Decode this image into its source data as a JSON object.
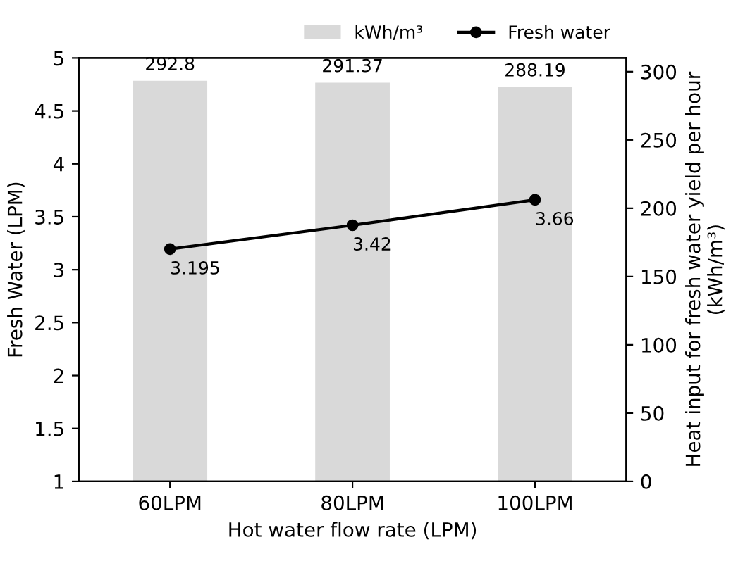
{
  "chart_data": {
    "type": "bar",
    "xlabel": "Hot water flow rate (LPM)",
    "ylabel": "Fresh Water (LPM)",
    "y2label": "Heat input for fresh water yield per hour\n(kWh/m³)",
    "categories": [
      "60LPM",
      "80LPM",
      "100LPM"
    ],
    "series": [
      {
        "name": "kWh/m³",
        "axis": "y2",
        "color": "#d9d9d9",
        "values": [
          292.8,
          291.37,
          288.19
        ]
      },
      {
        "name": "Fresh water",
        "type": "line",
        "axis": "y",
        "color": "#000000",
        "values": [
          3.195,
          3.42,
          3.66
        ],
        "marker": "circle",
        "line_style": "solid"
      }
    ],
    "ylim": [
      1,
      5
    ],
    "yticks": [
      1,
      1.5,
      2,
      2.5,
      3,
      3.5,
      4,
      4.5,
      5
    ],
    "y2lim": [
      0,
      310
    ],
    "y2ticks": [
      0,
      50,
      100,
      150,
      200,
      250,
      300
    ],
    "data_labels": true,
    "legend": "top right",
    "grid": false
  }
}
